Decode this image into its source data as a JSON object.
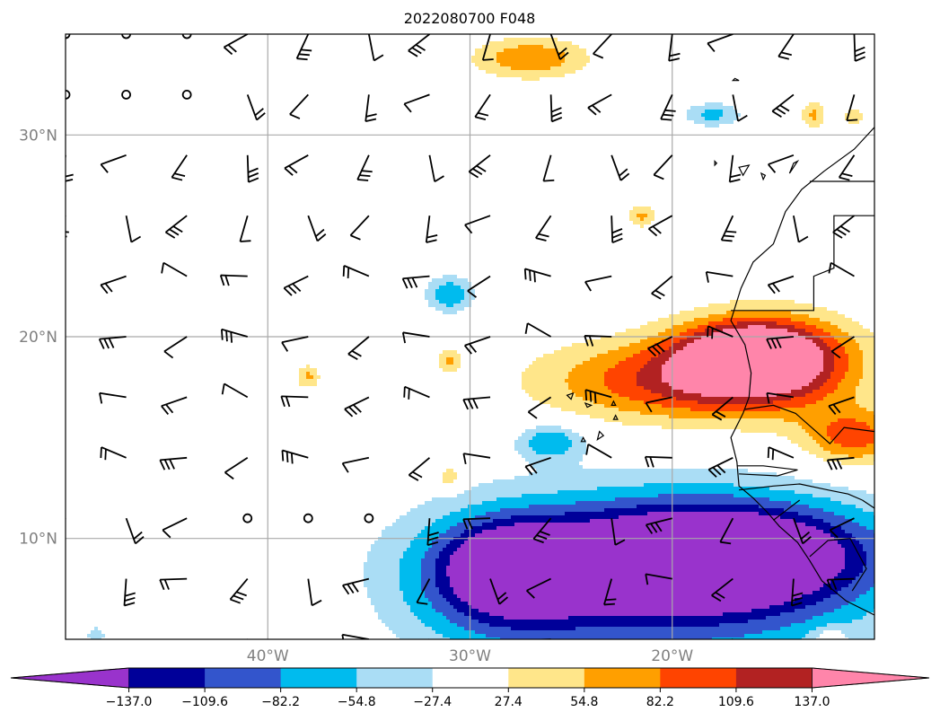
{
  "title": "2022080700 F048",
  "map": {
    "projection": "PlateCarree",
    "lon_range": [
      -50,
      -10
    ],
    "lat_range": [
      5,
      35
    ],
    "lat_ticks": [
      {
        "value": 30,
        "label": "30°N"
      },
      {
        "value": 20,
        "label": "20°N"
      },
      {
        "value": 10,
        "label": "10°N"
      }
    ],
    "lon_ticks": [
      {
        "value": -40,
        "label": "40°W"
      },
      {
        "value": -30,
        "label": "30°W"
      },
      {
        "value": -20,
        "label": "20°W"
      }
    ],
    "grid": true
  },
  "colorbar": {
    "extend": "both",
    "levels": [
      -164.4,
      -137.0,
      -109.6,
      -82.2,
      -54.8,
      -27.4,
      27.4,
      54.8,
      82.2,
      109.6,
      137.0,
      164.4
    ],
    "tick_labels": [
      "−137.0",
      "−109.6",
      "−82.2",
      "−54.8",
      "−27.4",
      "27.4",
      "54.8",
      "82.2",
      "109.6",
      "137.0"
    ],
    "colors": [
      "#9933cc",
      "#000099",
      "#3355cc",
      "#00bbee",
      "#aaddf5",
      "#ffffff",
      "#ffe68a",
      "#ff9f00",
      "#ff4400",
      "#b22222",
      "#ff85aa"
    ],
    "under_color": "#9933cc",
    "over_color": "#ff85aa"
  },
  "chart_data": {
    "type": "heatmap",
    "title": "2022080700 F048",
    "xlabel": "",
    "ylabel": "",
    "x_range": [
      -50,
      -10
    ],
    "y_range": [
      5,
      35
    ],
    "fields": [
      {
        "lon": -16,
        "lat": 19.2,
        "value": 150,
        "dlon": 3.5,
        "dlat": 1.6
      },
      {
        "lon": -20,
        "lat": 17.8,
        "value": 105,
        "dlon": 6.5,
        "dlat": 2.0
      },
      {
        "lon": -15,
        "lat": 18.6,
        "value": 90,
        "dlon": 4.5,
        "dlat": 2.5
      },
      {
        "lon": -11,
        "lat": 15.0,
        "value": 95,
        "dlon": 2.5,
        "dlat": 1.4
      },
      {
        "lon": -27,
        "lat": 33.8,
        "value": 80,
        "dlon": 2.8,
        "dlat": 1.0
      },
      {
        "lon": -17,
        "lat": 8.8,
        "value": -150,
        "dlon": 2.4,
        "dlat": 1.2
      },
      {
        "lon": -17,
        "lat": 9.3,
        "value": -125,
        "dlon": 7.0,
        "dlat": 2.3
      },
      {
        "lon": -28,
        "lat": 8.6,
        "value": -112,
        "dlon": 3.0,
        "dlat": 2.0
      },
      {
        "lon": -21,
        "lat": 8.8,
        "value": -98,
        "dlon": 10.0,
        "dlat": 3.4
      },
      {
        "lon": -28.5,
        "lat": 7.5,
        "value": -70,
        "dlon": 5.0,
        "dlat": 3.5
      },
      {
        "lon": -19,
        "lat": 7.4,
        "value": -70,
        "dlon": 9.5,
        "dlat": 4.5
      },
      {
        "lon": -31,
        "lat": 22.1,
        "value": -80,
        "dlon": 1.2,
        "dlat": 0.9
      },
      {
        "lon": -26,
        "lat": 14.8,
        "value": -80,
        "dlon": 1.6,
        "dlat": 0.9
      },
      {
        "lon": -18,
        "lat": 31.0,
        "value": -65,
        "dlon": 1.4,
        "dlat": 0.6
      },
      {
        "lon": -48.5,
        "lat": 5.2,
        "value": -40,
        "dlon": 0.6,
        "dlat": 0.6
      },
      {
        "lon": -38,
        "lat": 18.0,
        "value": 60,
        "dlon": 0.6,
        "dlat": 0.6
      },
      {
        "lon": -31,
        "lat": 18.8,
        "value": 60,
        "dlon": 0.6,
        "dlat": 0.6
      },
      {
        "lon": -31,
        "lat": 13.0,
        "value": 60,
        "dlon": 0.6,
        "dlat": 0.6
      },
      {
        "lon": -21.5,
        "lat": 26.0,
        "value": 60,
        "dlon": 0.7,
        "dlat": 0.6
      },
      {
        "lon": -13,
        "lat": 31.0,
        "value": 60,
        "dlon": 0.6,
        "dlat": 0.7
      },
      {
        "lon": -11,
        "lat": 30.9,
        "value": 45,
        "dlon": 0.6,
        "dlat": 0.6
      },
      {
        "lon": -12.2,
        "lat": 5.1,
        "value": 45,
        "dlon": 0.8,
        "dlat": 0.5
      }
    ]
  }
}
